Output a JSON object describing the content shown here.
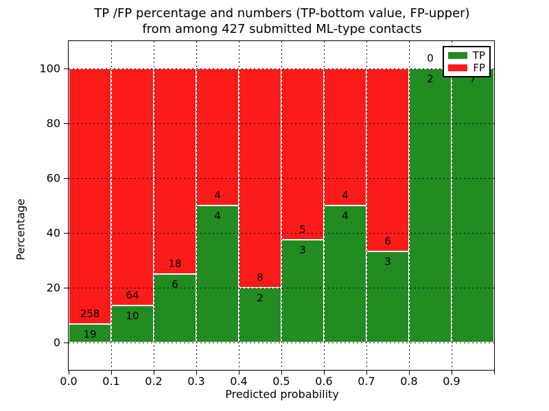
{
  "title": {
    "line1": "TP /FP percentage and numbers (TP-bottom value, FP-upper)",
    "line2": "from among 427 submitted ML-type contacts"
  },
  "axes": {
    "xlabel": "Predicted probability",
    "ylabel": "Percentage",
    "x_ticks": [
      "0.0",
      "0.1",
      "0.2",
      "0.3",
      "0.4",
      "0.5",
      "0.6",
      "0.7",
      "0.8",
      "0.9"
    ],
    "y_ticks": [
      "0",
      "20",
      "40",
      "60",
      "80",
      "100"
    ]
  },
  "legend": {
    "position": "upper right",
    "items": [
      {
        "label": "TP",
        "color": "#228b22"
      },
      {
        "label": "FP",
        "color": "#fb1b1b"
      }
    ]
  },
  "colors": {
    "tp": "#228b22",
    "fp": "#fb1b1b",
    "grid": "#000000",
    "background": "#ffffff"
  },
  "chart_data": {
    "type": "bar",
    "stacked": true,
    "normalized": "each bin scaled to 100%",
    "title": "TP /FP percentage and numbers (TP-bottom value, FP-upper) from among 427 submitted ML-type contacts",
    "xlabel": "Predicted probability",
    "ylabel": "Percentage",
    "xlim": [
      0.0,
      1.0
    ],
    "ylim": [
      -10,
      110
    ],
    "grid": true,
    "bin_width": 0.1,
    "categories": [
      "0.0-0.1",
      "0.1-0.2",
      "0.2-0.3",
      "0.3-0.4",
      "0.4-0.5",
      "0.5-0.6",
      "0.6-0.7",
      "0.7-0.8",
      "0.8-0.9",
      "0.9-1.0"
    ],
    "series": [
      {
        "name": "TP",
        "color": "#228b22",
        "counts": [
          19,
          10,
          6,
          4,
          2,
          3,
          4,
          3,
          2,
          7
        ],
        "percent": [
          6.86,
          13.51,
          25.0,
          50.0,
          20.0,
          37.5,
          50.0,
          33.33,
          100.0,
          100.0
        ]
      },
      {
        "name": "FP",
        "color": "#fb1b1b",
        "counts": [
          258,
          64,
          18,
          4,
          8,
          5,
          4,
          6,
          0,
          0
        ],
        "percent": [
          93.14,
          86.49,
          75.0,
          50.0,
          80.0,
          62.5,
          50.0,
          66.67,
          0.0,
          0.0
        ]
      }
    ],
    "total_contacts": 427
  }
}
